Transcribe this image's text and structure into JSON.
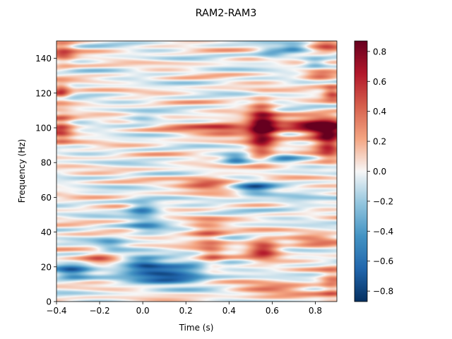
{
  "chart_data": {
    "type": "heatmap",
    "title": "RAM2-RAM3",
    "xlabel": "Time (s)",
    "ylabel": "Frequency (Hz)",
    "xlim": [
      -0.4,
      0.9
    ],
    "ylim": [
      0,
      150
    ],
    "xticks": [
      -0.4,
      -0.2,
      0.0,
      0.2,
      0.4,
      0.6,
      0.8
    ],
    "xtick_labels": [
      "−0.4",
      "−0.2",
      "0.0",
      "0.2",
      "0.4",
      "0.6",
      "0.8"
    ],
    "yticks": [
      0,
      20,
      40,
      60,
      80,
      100,
      120,
      140
    ],
    "ytick_labels": [
      "0",
      "20",
      "40",
      "60",
      "80",
      "100",
      "120",
      "140"
    ],
    "colorbar": {
      "colormap": "RdBu_r",
      "vmin": -0.87,
      "vmax": 0.87,
      "ticks": [
        -0.8,
        -0.6,
        -0.4,
        -0.2,
        0.0,
        0.2,
        0.4,
        0.6,
        0.8
      ],
      "tick_labels": [
        "−0.8",
        "−0.6",
        "−0.4",
        "−0.2",
        "0.0",
        "0.2",
        "0.4",
        "0.6",
        "0.8"
      ]
    },
    "grid": false,
    "blobs": [
      {
        "t": 0.56,
        "f": 100,
        "st": 0.05,
        "sf": 5,
        "v": 0.85
      },
      {
        "t": 0.55,
        "f": 110,
        "st": 0.04,
        "sf": 6,
        "v": 0.35
      },
      {
        "t": 0.55,
        "f": 89,
        "st": 0.04,
        "sf": 6,
        "v": 0.45
      },
      {
        "t": 0.85,
        "f": 100,
        "st": 0.07,
        "sf": 5,
        "v": 0.8
      },
      {
        "t": 0.86,
        "f": 90,
        "st": 0.04,
        "sf": 6,
        "v": 0.55
      },
      {
        "t": 0.72,
        "f": 101,
        "st": 0.08,
        "sf": 3,
        "v": 0.45
      },
      {
        "t": 0.4,
        "f": 100,
        "st": 0.08,
        "sf": 3,
        "v": 0.4
      },
      {
        "t": 0.25,
        "f": 100,
        "st": 0.12,
        "sf": 3,
        "v": 0.25
      },
      {
        "t": -0.38,
        "f": 100,
        "st": 0.04,
        "sf": 6,
        "v": 0.5
      },
      {
        "t": -0.38,
        "f": 121,
        "st": 0.03,
        "sf": 3,
        "v": 0.55
      },
      {
        "t": -0.37,
        "f": 143,
        "st": 0.04,
        "sf": 5,
        "v": 0.4
      },
      {
        "t": 0.85,
        "f": 147,
        "st": 0.05,
        "sf": 3,
        "v": 0.45
      },
      {
        "t": 0.82,
        "f": 130,
        "st": 0.05,
        "sf": 3,
        "v": 0.35
      },
      {
        "t": 0.88,
        "f": 120,
        "st": 0.03,
        "sf": 3,
        "v": 0.5
      },
      {
        "t": 0.12,
        "f": 16,
        "st": 0.13,
        "sf": 4,
        "v": -0.8
      },
      {
        "t": 0.0,
        "f": 22,
        "st": 0.06,
        "sf": 3,
        "v": -0.5
      },
      {
        "t": -0.33,
        "f": 17,
        "st": 0.06,
        "sf": 3,
        "v": -0.6
      },
      {
        "t": 0.0,
        "f": 53,
        "st": 0.05,
        "sf": 3,
        "v": -0.55
      },
      {
        "t": 0.02,
        "f": 43,
        "st": 0.06,
        "sf": 3,
        "v": -0.35
      },
      {
        "t": 0.52,
        "f": 65,
        "st": 0.06,
        "sf": 3,
        "v": -0.55
      },
      {
        "t": 0.43,
        "f": 82,
        "st": 0.04,
        "sf": 2,
        "v": -0.5
      },
      {
        "t": 0.66,
        "f": 83,
        "st": 0.05,
        "sf": 2,
        "v": -0.3
      },
      {
        "t": 0.3,
        "f": 68,
        "st": 0.08,
        "sf": 3,
        "v": 0.45
      },
      {
        "t": 0.56,
        "f": 30,
        "st": 0.05,
        "sf": 4,
        "v": 0.65
      },
      {
        "t": 0.8,
        "f": 35,
        "st": 0.08,
        "sf": 3,
        "v": 0.3
      },
      {
        "t": 0.3,
        "f": 40,
        "st": 0.06,
        "sf": 5,
        "v": 0.35
      },
      {
        "t": 0.32,
        "f": 25,
        "st": 0.04,
        "sf": 6,
        "v": 0.3
      },
      {
        "t": 0.6,
        "f": 7,
        "st": 0.12,
        "sf": 3,
        "v": 0.3
      },
      {
        "t": 0.88,
        "f": 10,
        "st": 0.04,
        "sf": 6,
        "v": 0.35
      },
      {
        "t": 0.6,
        "f": 143,
        "st": 0.05,
        "sf": 3,
        "v": -0.3
      },
      {
        "t": 0.8,
        "f": 137,
        "st": 0.04,
        "sf": 2,
        "v": -0.4
      },
      {
        "t": 0.7,
        "f": 146,
        "st": 0.04,
        "sf": 2,
        "v": -0.35
      },
      {
        "t": 0.0,
        "f": 105,
        "st": 0.06,
        "sf": 2,
        "v": -0.3
      },
      {
        "t": -0.2,
        "f": 25,
        "st": 0.05,
        "sf": 3,
        "v": 0.3
      },
      {
        "t": -0.15,
        "f": 33,
        "st": 0.05,
        "sf": 3,
        "v": -0.3
      },
      {
        "t": 0.7,
        "f": 57,
        "st": 0.08,
        "sf": 3,
        "v": -0.2
      }
    ]
  }
}
